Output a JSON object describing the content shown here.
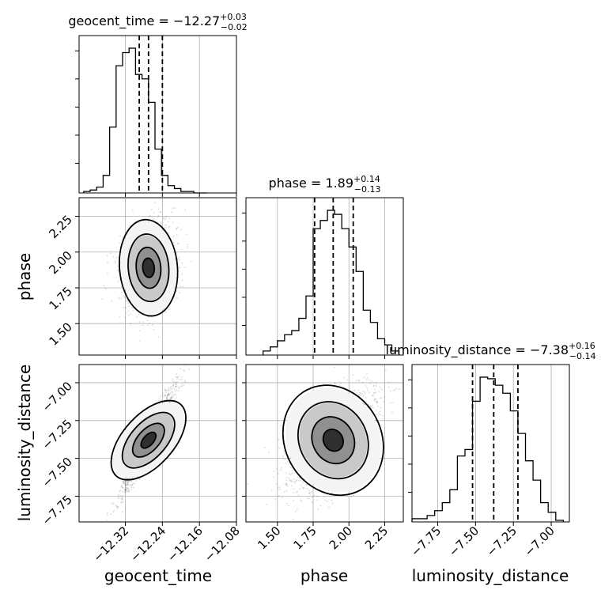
{
  "chart_data": {
    "type": "corner",
    "grid": true,
    "parameters": [
      {
        "name": "geocent_time",
        "title_main": "geocent_time = −12.27",
        "title_sup": "+0.03",
        "title_sub": "−0.02",
        "median": -12.27,
        "q16": -12.29,
        "q84": -12.24,
        "range": [
          -12.42,
          -12.08
        ],
        "ticks": [
          -12.32,
          -12.24,
          -12.16,
          -12.08
        ],
        "tick_labels": [
          "−12.32",
          "−12.24",
          "−12.16",
          "−12.08"
        ],
        "histogram": {
          "bin_edges": [
            -12.41,
            -12.396,
            -12.382,
            -12.368,
            -12.354,
            -12.34,
            -12.326,
            -12.312,
            -12.298,
            -12.284,
            -12.27,
            -12.256,
            -12.242,
            -12.228,
            -12.214,
            -12.2,
            -12.186,
            -12.172,
            -12.158,
            -12.144
          ],
          "counts": [
            1,
            2,
            4,
            12,
            45,
            87,
            96,
            99,
            81,
            78,
            62,
            30,
            12,
            5,
            3,
            1,
            1,
            0,
            0
          ]
        }
      },
      {
        "name": "phase",
        "title_main": "phase = 1.89",
        "title_sup": "+0.14",
        "title_sub": "−0.13",
        "median": 1.89,
        "q16": 1.76,
        "q84": 2.03,
        "range": [
          1.28,
          2.38
        ],
        "ticks": [
          1.5,
          1.75,
          2.0,
          2.25
        ],
        "tick_labels": [
          "1.50",
          "1.75",
          "2.00",
          "2.25"
        ],
        "histogram": {
          "bin_edges": [
            1.4,
            1.45,
            1.5,
            1.55,
            1.6,
            1.65,
            1.7,
            1.75,
            1.8,
            1.85,
            1.9,
            1.95,
            2.0,
            2.05,
            2.1,
            2.15,
            2.2,
            2.25,
            2.3,
            2.35
          ],
          "counts": [
            2,
            4,
            7,
            10,
            12,
            18,
            29,
            62,
            66,
            71,
            69,
            62,
            53,
            41,
            22,
            16,
            8,
            5,
            2
          ]
        }
      },
      {
        "name": "luminosity_distance",
        "title_main": "luminosity_distance = −7.38",
        "title_sup": "+0.16",
        "title_sub": "−0.14",
        "median": -7.38,
        "q16": -7.52,
        "q84": -7.22,
        "range": [
          -7.92,
          -6.88
        ],
        "ticks": [
          -7.75,
          -7.5,
          -7.25,
          -7.0
        ],
        "tick_labels": [
          "−7.75",
          "−7.50",
          "−7.25",
          "−7.00"
        ],
        "histogram": {
          "bin_edges": [
            -7.92,
            -7.87,
            -7.82,
            -7.77,
            -7.72,
            -7.67,
            -7.62,
            -7.57,
            -7.52,
            -7.47,
            -7.42,
            -7.37,
            -7.32,
            -7.27,
            -7.22,
            -7.17,
            -7.12,
            -7.07,
            -7.02,
            -6.97,
            -6.92
          ],
          "counts": [
            2,
            2,
            4,
            7,
            12,
            20,
            41,
            45,
            75,
            90,
            89,
            85,
            80,
            69,
            55,
            38,
            26,
            12,
            6,
            1
          ]
        }
      }
    ]
  }
}
